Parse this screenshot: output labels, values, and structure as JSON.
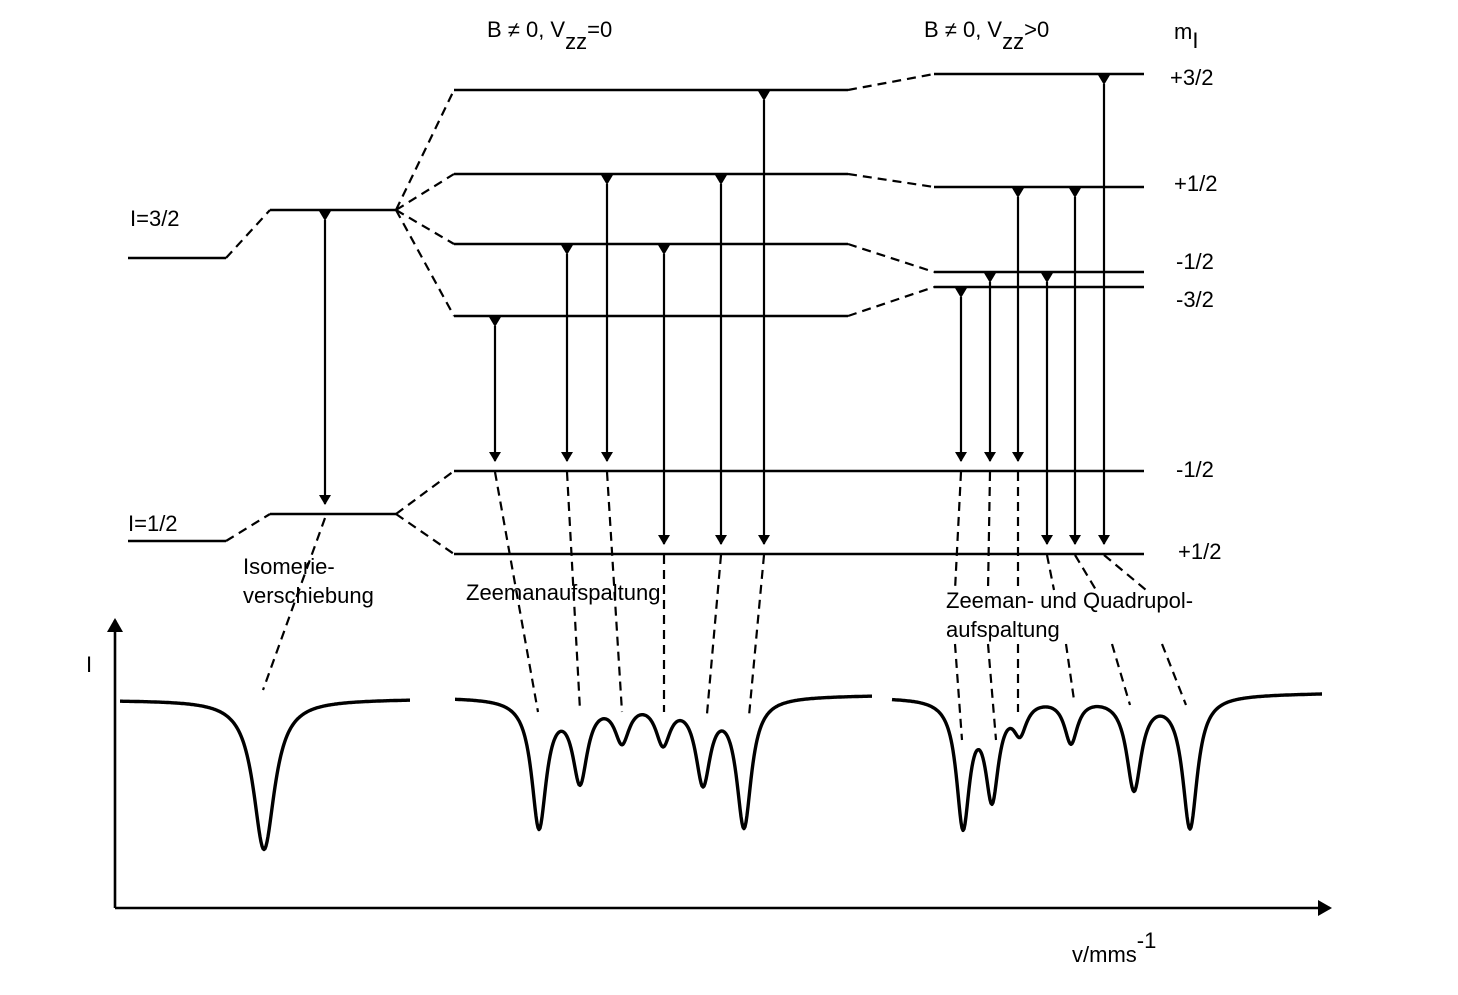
{
  "headers": {
    "case_zeeman": {
      "main": "B ≠ 0, V",
      "sub": "zz",
      "tail": "=0"
    },
    "case_combined": {
      "main": "B ≠ 0, V",
      "sub": "zz",
      "tail": ">0"
    },
    "ml_header": {
      "main": "m",
      "sub": "I"
    }
  },
  "left_states": {
    "excited": "I=3/2",
    "ground": "I=1/2"
  },
  "ml_values": {
    "plus_three_half": "+3/2",
    "plus_half_upper": "+1/2",
    "minus_half_upper": "-1/2",
    "minus_three_half": "-3/2",
    "minus_half_lower": "-1/2",
    "plus_half_lower": "+1/2"
  },
  "effects": {
    "isomer_line1": "Isomerie-",
    "isomer_line2": "verschiebung",
    "zeeman": "Zeemanaufspaltung",
    "combined_line1": "Zeeman- und Quadrupol-",
    "combined_line2": "aufspaltung"
  },
  "axes": {
    "y_label": "I",
    "x_label": "v/mms",
    "x_label_exp": "-1"
  }
}
